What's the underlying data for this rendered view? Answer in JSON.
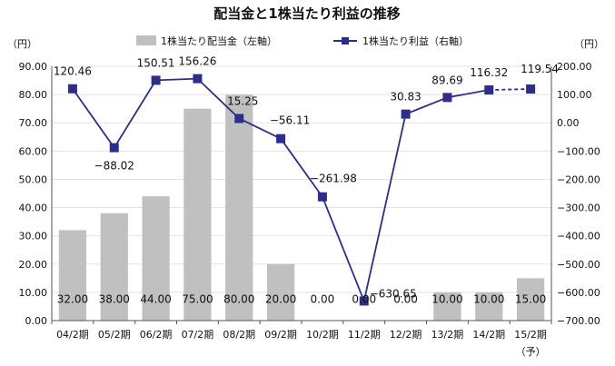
{
  "chart_data": {
    "type": "bar+line",
    "title": "配当金と1株当たり利益の推移",
    "left_unit": "（円）",
    "right_unit": "（円）",
    "categories": [
      "04/2期",
      "05/2期",
      "06/2期",
      "07/2期",
      "08/2期",
      "09/2期",
      "10/2期",
      "11/2期",
      "12/2期",
      "13/2期",
      "14/2期",
      "15/2期"
    ],
    "category_note": "（予）",
    "left_axis": {
      "min": 0,
      "max": 90,
      "step": 10,
      "decimals": 2
    },
    "right_axis": {
      "min": -700,
      "max": 200,
      "step": 100,
      "decimals": 2
    },
    "series": [
      {
        "name": "1株当たり配当金（左軸）",
        "kind": "bar",
        "axis": "left",
        "color": "#c0c0c0",
        "values": [
          32.0,
          38.0,
          44.0,
          75.0,
          80.0,
          20.0,
          0.0,
          0.0,
          0.0,
          10.0,
          10.0,
          15.0
        ],
        "labels": [
          "32.00",
          "38.00",
          "44.00",
          "75.00",
          "80.00",
          "20.00",
          "0.00",
          "0.00",
          "0.00",
          "10.00",
          "10.00",
          "15.00"
        ]
      },
      {
        "name": "1株当たり利益（右軸）",
        "kind": "line",
        "axis": "right",
        "color": "#2e2e8a",
        "values": [
          120.46,
          -88.02,
          150.51,
          156.26,
          15.25,
          -56.11,
          -261.98,
          -630.65,
          30.83,
          89.69,
          116.32,
          119.54
        ],
        "labels": [
          "120.46",
          "−88.02",
          "150.51",
          "156.26",
          "15.25",
          "−56.11",
          "−261.98",
          "−630.65",
          "30.83",
          "89.69",
          "116.32",
          "119.54"
        ],
        "forecast_from_index": 10
      }
    ]
  }
}
